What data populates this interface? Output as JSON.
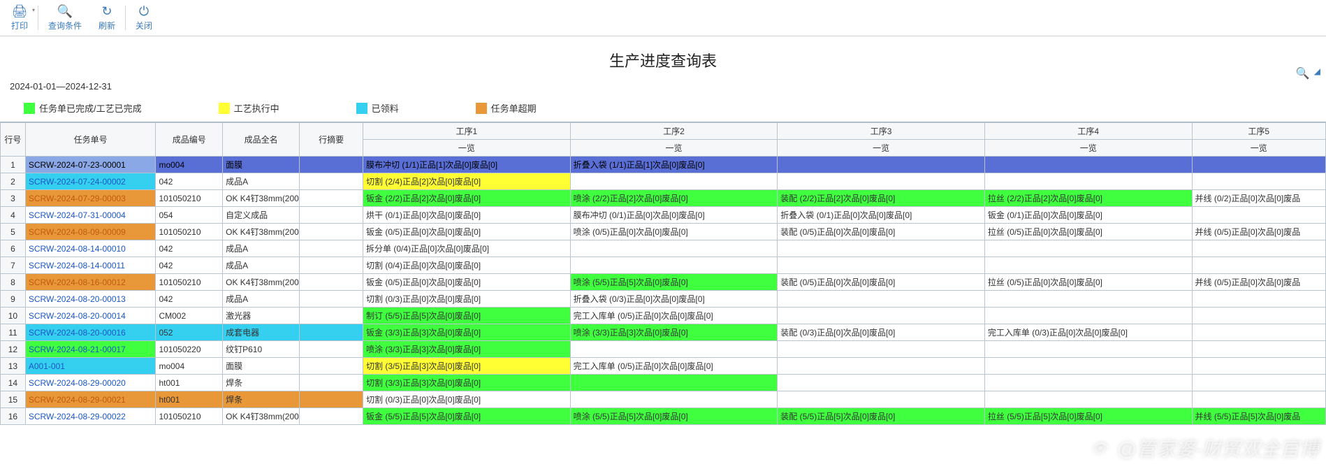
{
  "toolbar": {
    "print": "打印",
    "query": "查询条件",
    "refresh": "刷新",
    "close": "关闭"
  },
  "page_title": "生产进度查询表",
  "date_range": "2024-01-01—2024-12-31",
  "legend": [
    {
      "color": "#3fff3f",
      "label": "任务单已完成/工艺已完成"
    },
    {
      "color": "#ffff33",
      "label": "工艺执行中"
    },
    {
      "color": "#35d0f0",
      "label": "已领料"
    },
    {
      "color": "#e89838",
      "label": "任务单超期"
    }
  ],
  "colors": {
    "header_blue": "#5a6fd6",
    "row_selected": "#8aa8e6",
    "green": "#3fff3f",
    "yellow": "#ffff33",
    "cyan": "#35d0f0",
    "orange": "#e89838",
    "link_blue": "#1b57c4",
    "link_orange": "#c05a10",
    "border": "#b8c4d0",
    "header_bg": "#f5f7f9"
  },
  "columns": {
    "rownum": "行号",
    "task_no": "任务单号",
    "prod_code": "成品编号",
    "prod_name": "成品全名",
    "summary": "行摘要",
    "steps": [
      "工序1",
      "工序2",
      "工序3",
      "工序4",
      "工序5"
    ],
    "step_sub": "一览"
  },
  "rows": [
    {
      "n": 1,
      "task": "SCRW-2024-07-23-00001",
      "task_cls": "bg-lightblue",
      "code": "mo004",
      "code_cls": "bg-blue",
      "name": "面膜",
      "name_cls": "bg-blue",
      "sum_cls": "bg-blue",
      "s1": "膜布冲切 (1/1)正品[1]次品[0]废品[0]",
      "s1_cls": "bg-blue",
      "s2": "折叠入袋 (1/1)正品[1]次品[0]废品[0]",
      "s2_cls": "bg-blue",
      "s3": "",
      "s3_cls": "bg-blue",
      "s4": "",
      "s4_cls": "bg-blue",
      "s5": "",
      "s5_cls": "bg-blue"
    },
    {
      "n": 2,
      "task": "SCRW-2024-07-24-00002",
      "task_cls": "bg-cyan link-blue",
      "code": "042",
      "name": "成品A",
      "s1": "切割 (2/4)正品[2]次品[0]废品[0]",
      "s1_cls": "bg-yellow",
      "s2": "",
      "s3": "",
      "s4": "",
      "s5": ""
    },
    {
      "n": 3,
      "task": "SCRW-2024-07-29-00003",
      "task_cls": "bg-orange link-orange",
      "code": "101050210",
      "name": "OK K4钉38mm(2000)",
      "s1": "钣金 (2/2)正品[2]次品[0]废品[0]",
      "s1_cls": "bg-green",
      "s2": "喷涂 (2/2)正品[2]次品[0]废品[0]",
      "s2_cls": "bg-green",
      "s3": "装配 (2/2)正品[2]次品[0]废品[0]",
      "s3_cls": "bg-green",
      "s4": "拉丝 (2/2)正品[2]次品[0]废品[0]",
      "s4_cls": "bg-green",
      "s5": "并线 (0/2)正品[0]次品[0]废品"
    },
    {
      "n": 4,
      "task": "SCRW-2024-07-31-00004",
      "task_cls": "link-blue",
      "code": "054",
      "name": "自定义成品",
      "s1": "烘干 (0/1)正品[0]次品[0]废品[0]",
      "s2": "膜布冲切 (0/1)正品[0]次品[0]废品[0]",
      "s3": "折叠入袋 (0/1)正品[0]次品[0]废品[0]",
      "s4": "钣金 (0/1)正品[0]次品[0]废品[0]",
      "s5": ""
    },
    {
      "n": 5,
      "task": "SCRW-2024-08-09-00009",
      "task_cls": "bg-orange link-orange",
      "code": "101050210",
      "name": "OK K4钉38mm(2000)",
      "s1": "钣金 (0/5)正品[0]次品[0]废品[0]",
      "s2": "喷涂 (0/5)正品[0]次品[0]废品[0]",
      "s3": "装配 (0/5)正品[0]次品[0]废品[0]",
      "s4": "拉丝 (0/5)正品[0]次品[0]废品[0]",
      "s5": "并线 (0/5)正品[0]次品[0]废品"
    },
    {
      "n": 6,
      "task": "SCRW-2024-08-14-00010",
      "task_cls": "link-blue",
      "code": "042",
      "name": "成品A",
      "s1": "拆分单 (0/4)正品[0]次品[0]废品[0]",
      "s2": "",
      "s3": "",
      "s4": "",
      "s5": ""
    },
    {
      "n": 7,
      "task": "SCRW-2024-08-14-00011",
      "task_cls": "link-blue",
      "code": "042",
      "name": "成品A",
      "s1": "切割 (0/4)正品[0]次品[0]废品[0]",
      "s2": "",
      "s3": "",
      "s4": "",
      "s5": ""
    },
    {
      "n": 8,
      "task": "SCRW-2024-08-16-00012",
      "task_cls": "bg-orange link-orange",
      "code": "101050210",
      "name": "OK K4钉38mm(2000)",
      "s1": "钣金 (0/5)正品[0]次品[0]废品[0]",
      "s2": "喷涂 (5/5)正品[5]次品[0]废品[0]",
      "s2_cls": "bg-green",
      "s3": "装配 (0/5)正品[0]次品[0]废品[0]",
      "s4": "拉丝 (0/5)正品[0]次品[0]废品[0]",
      "s5": "并线 (0/5)正品[0]次品[0]废品"
    },
    {
      "n": 9,
      "task": "SCRW-2024-08-20-00013",
      "task_cls": "link-blue",
      "code": "042",
      "name": "成品A",
      "s1": "切割 (0/3)正品[0]次品[0]废品[0]",
      "s2": "折叠入袋 (0/3)正品[0]次品[0]废品[0]",
      "s3": "",
      "s4": "",
      "s5": ""
    },
    {
      "n": 10,
      "task": "SCRW-2024-08-20-00014",
      "task_cls": "link-blue",
      "code": "CM002",
      "name": "激光器",
      "s1": "制订 (5/5)正品[5]次品[0]废品[0]",
      "s1_cls": "bg-green",
      "s2": "完工入库单 (0/5)正品[0]次品[0]废品[0]",
      "s3": "",
      "s4": "",
      "s5": ""
    },
    {
      "n": 11,
      "task": "SCRW-2024-08-20-00016",
      "task_cls": "bg-cyan link-blue",
      "code": "052",
      "code_cls": "bg-cyan",
      "name": "成套电器",
      "name_cls": "bg-cyan",
      "sum_cls": "bg-cyan",
      "s1": "钣金 (3/3)正品[3]次品[0]废品[0]",
      "s1_cls": "bg-green",
      "s2": "喷涂 (3/3)正品[3]次品[0]废品[0]",
      "s2_cls": "bg-green",
      "s3": "装配 (0/3)正品[0]次品[0]废品[0]",
      "s4": "完工入库单 (0/3)正品[0]次品[0]废品[0]",
      "s5": ""
    },
    {
      "n": 12,
      "task": "SCRW-2024-08-21-00017",
      "task_cls": "bg-green link-blue",
      "code": "101050220",
      "name": "纹钉P610",
      "s1": "喷涂 (3/3)正品[3]次品[0]废品[0]",
      "s1_cls": "bg-green",
      "s2": "",
      "s3": "",
      "s4": "",
      "s5": ""
    },
    {
      "n": 13,
      "task": "A001-001",
      "task_cls": "bg-cyan link-blue",
      "code": "mo004",
      "name": "面膜",
      "s1": "切割 (3/5)正品[3]次品[0]废品[0]",
      "s1_cls": "bg-yellow",
      "s2": "完工入库单 (0/5)正品[0]次品[0]废品[0]",
      "s3": "",
      "s4": "",
      "s5": ""
    },
    {
      "n": 14,
      "task": "SCRW-2024-08-29-00020",
      "task_cls": "link-blue",
      "code": "ht001",
      "name": "焊条",
      "s1": "切割 (3/3)正品[3]次品[0]废品[0]",
      "s1_cls": "bg-green",
      "s2": "",
      "s2_cls": "bg-green",
      "s3": "",
      "s4": "",
      "s5": ""
    },
    {
      "n": 15,
      "task": "SCRW-2024-08-29-00021",
      "task_cls": "bg-orange link-orange",
      "code": "ht001",
      "code_cls": "bg-orange",
      "name": "焊条",
      "name_cls": "bg-orange",
      "sum_cls": "bg-orange",
      "s1": "切割 (0/3)正品[0]次品[0]废品[0]",
      "s2": "",
      "s3": "",
      "s4": "",
      "s5": ""
    },
    {
      "n": 16,
      "task": "SCRW-2024-08-29-00022",
      "task_cls": "link-blue",
      "code": "101050210",
      "name": "OK K4钉38mm(2000)",
      "s1": "钣金 (5/5)正品[5]次品[0]废品[0]",
      "s1_cls": "bg-green",
      "s2": "喷涂 (5/5)正品[5]次品[0]废品[0]",
      "s2_cls": "bg-green",
      "s3": "装配 (5/5)正品[5]次品[0]废品[0]",
      "s3_cls": "bg-green",
      "s4": "拉丝 (5/5)正品[5]次品[0]废品[0]",
      "s4_cls": "bg-green",
      "s5": "并线 (5/5)正品[5]次品[0]废品",
      "s5_cls": "bg-green"
    }
  ],
  "watermark": "@管家婆-财贸双全官博"
}
